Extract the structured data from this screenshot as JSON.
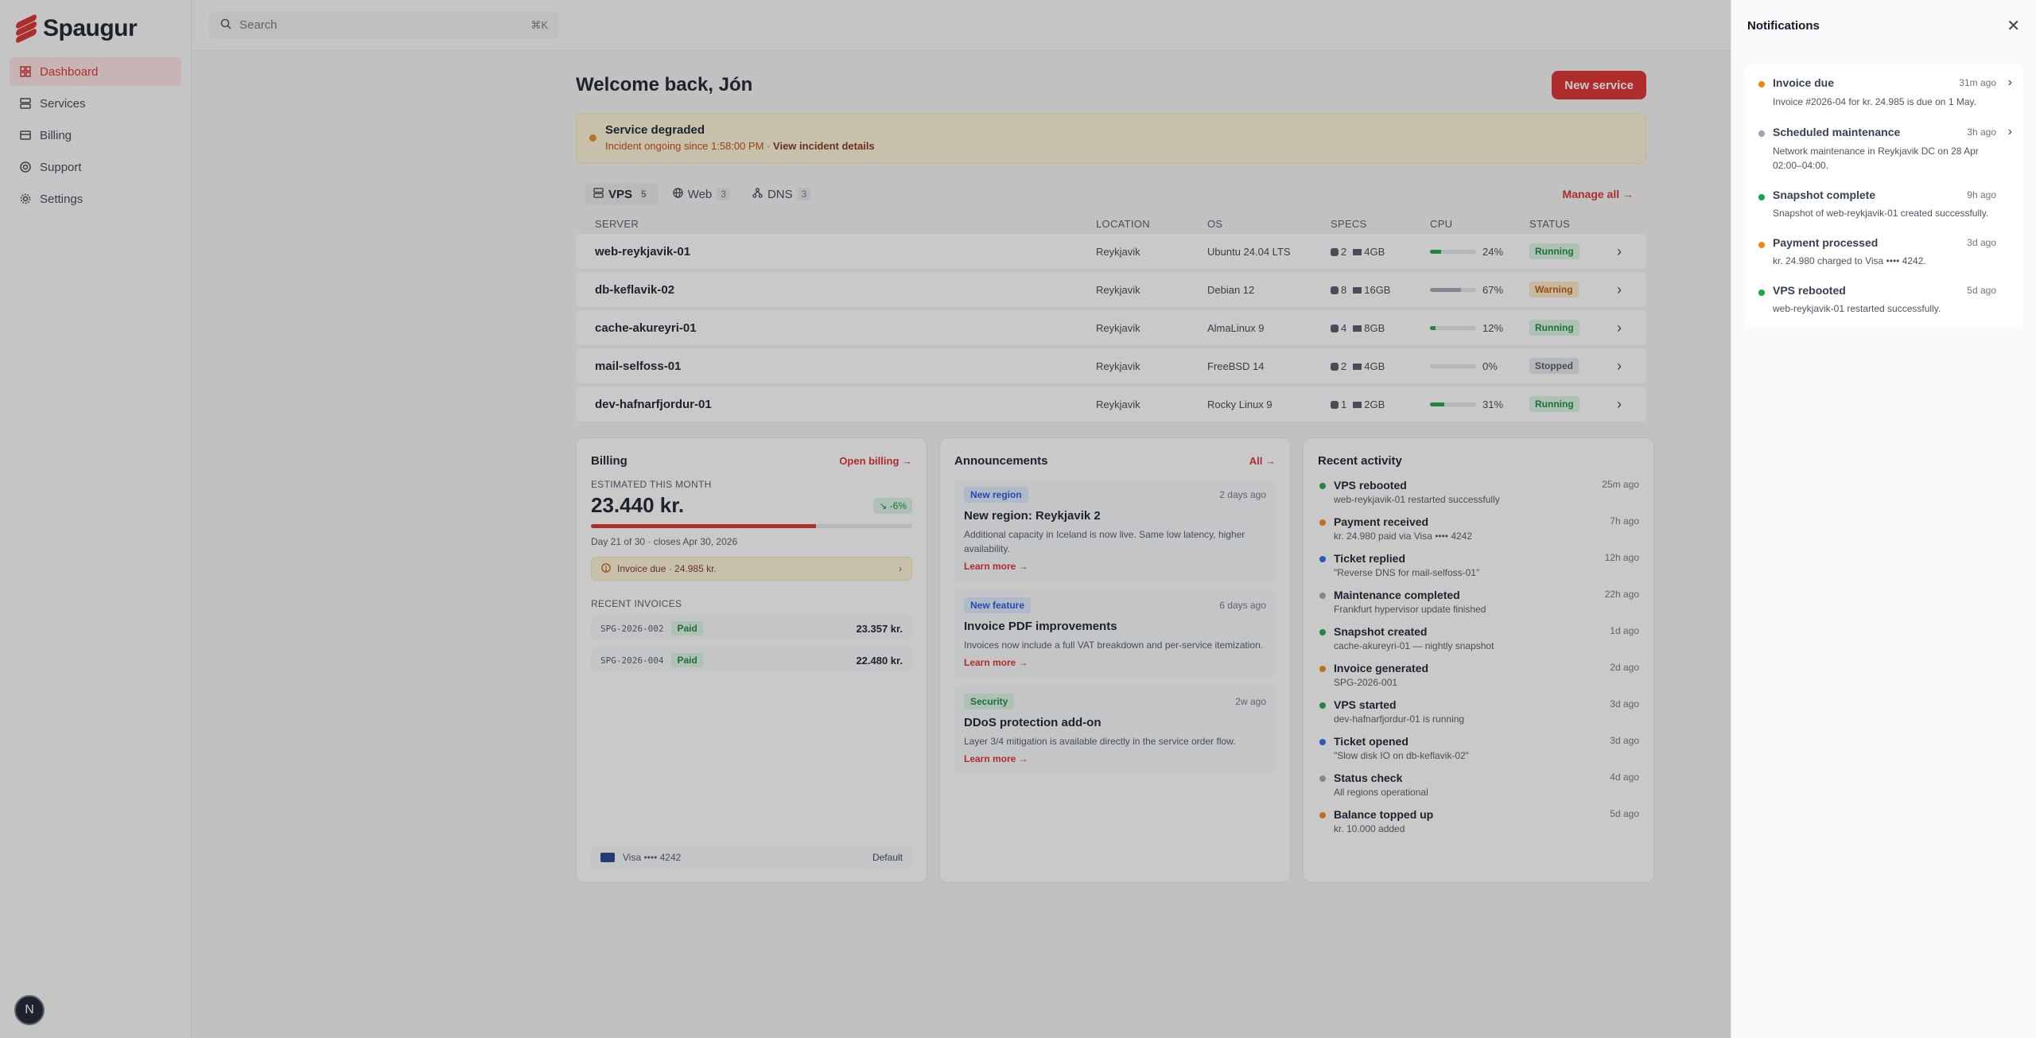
{
  "brand": {
    "name": "Spaugur",
    "accent": "#dc2626"
  },
  "sidebar": {
    "items": [
      {
        "label": "Dashboard",
        "icon": "grid-icon",
        "active": true
      },
      {
        "label": "Services",
        "icon": "server-icon"
      },
      {
        "label": "Billing",
        "icon": "card-icon"
      },
      {
        "label": "Support",
        "icon": "lifebuoy-icon"
      },
      {
        "label": "Settings",
        "icon": "gear-icon"
      }
    ],
    "avatar_initial": "N"
  },
  "search": {
    "placeholder": "Search",
    "shortcut": "⌘K"
  },
  "header": {
    "welcome": "Welcome back, Jón",
    "new_service": "New service"
  },
  "alert": {
    "title": "Service degraded",
    "sub": "Incident ongoing since 1:58:00 PM · ",
    "link": "View incident details"
  },
  "tabs": [
    {
      "label": "VPS",
      "count": "5"
    },
    {
      "label": "Web",
      "count": "3"
    },
    {
      "label": "DNS",
      "count": "3"
    }
  ],
  "manage_all": "Manage all →",
  "table": {
    "headers": [
      "SERVER",
      "LOCATION",
      "OS",
      "SPECS",
      "CPU",
      "STATUS"
    ],
    "rows": [
      {
        "server": "web-reykjavik-01",
        "location": "Reykjavik",
        "os": "Ubuntu 24.04 LTS",
        "cpu_count": "2",
        "mem": "4GB",
        "cpu": "24%",
        "cpu_value": 24,
        "status": "Running"
      },
      {
        "server": "db-keflavik-02",
        "location": "Reykjavik",
        "os": "Debian 12",
        "cpu_count": "8",
        "mem": "16GB",
        "cpu": "67%",
        "cpu_value": 67,
        "status": "Warning"
      },
      {
        "server": "cache-akureyri-01",
        "location": "Reykjavik",
        "os": "AlmaLinux 9",
        "cpu_count": "4",
        "mem": "8GB",
        "cpu": "12%",
        "cpu_value": 12,
        "status": "Running"
      },
      {
        "server": "mail-selfoss-01",
        "location": "Reykjavik",
        "os": "FreeBSD 14",
        "cpu_count": "2",
        "mem": "4GB",
        "cpu": "0%",
        "cpu_value": 0,
        "status": "Stopped"
      },
      {
        "server": "dev-hafnarfjordur-01",
        "location": "Reykjavik",
        "os": "Rocky Linux 9",
        "cpu_count": "1",
        "mem": "2GB",
        "cpu": "31%",
        "cpu_value": 31,
        "status": "Running"
      }
    ]
  },
  "billing": {
    "title": "Billing",
    "link": "Open billing →",
    "estimated_label": "ESTIMATED THIS MONTH",
    "amount": "23.440 kr.",
    "delta": "↘ -6%",
    "progress_fraction": 0.7,
    "progress_sub": "Day 21 of 30 · closes Apr 30, 2026",
    "invoice_due": "Invoice due · 24.985 kr.",
    "recent_label": "RECENT INVOICES",
    "invoices": [
      {
        "id": "SPG-2026-002",
        "status": "Paid",
        "amount": "23.357 kr."
      },
      {
        "id": "SPG-2026-004",
        "status": "Paid",
        "amount": "22.480 kr."
      }
    ],
    "payment": {
      "card": "Visa •••• 4242",
      "default": "Default"
    }
  },
  "announcements": {
    "title": "Announcements",
    "link": "All →",
    "items": [
      {
        "tag": "New region",
        "tag_color": "blue",
        "date": "2 days ago",
        "title": "New region: Reykjavik 2",
        "body": "Additional capacity in Iceland is now live. Same low latency, higher availability.",
        "link": "Learn more →"
      },
      {
        "tag": "New feature",
        "tag_color": "blue",
        "date": "6 days ago",
        "title": "Invoice PDF improvements",
        "body": "Invoices now include a full VAT breakdown and per-service itemization.",
        "link": "Learn more →"
      },
      {
        "tag": "Security",
        "tag_color": "green",
        "date": "2w ago",
        "title": "DDoS protection add-on",
        "body": "Layer 3/4 mitigation is available directly in the service order flow.",
        "link": "Learn more →"
      }
    ]
  },
  "activity": {
    "title": "Recent activity",
    "items": [
      {
        "title": "VPS rebooted",
        "sub": "web-reykjavik-01 restarted successfully",
        "time": "25m ago",
        "color": "#16a34a"
      },
      {
        "title": "Payment received",
        "sub": "kr. 24.980 paid via Visa •••• 4242",
        "time": "7h ago",
        "color": "#ea8a14"
      },
      {
        "title": "Ticket replied",
        "sub": "\"Reverse DNS for mail-selfoss-01\"",
        "time": "12h ago",
        "color": "#2563eb"
      },
      {
        "title": "Maintenance completed",
        "sub": "Frankfurt hypervisor update finished",
        "time": "22h ago",
        "color": "#9ca3af"
      },
      {
        "title": "Snapshot created",
        "sub": "cache-akureyri-01 — nightly snapshot",
        "time": "1d ago",
        "color": "#16a34a"
      },
      {
        "title": "Invoice generated",
        "sub": "SPG-2026-001",
        "time": "2d ago",
        "color": "#ea8a14"
      },
      {
        "title": "VPS started",
        "sub": "dev-hafnarfjordur-01 is running",
        "time": "3d ago",
        "color": "#16a34a"
      },
      {
        "title": "Ticket opened",
        "sub": "\"Slow disk IO on db-keflavik-02\"",
        "time": "3d ago",
        "color": "#2563eb"
      },
      {
        "title": "Status check",
        "sub": "All regions operational",
        "time": "4d ago",
        "color": "#9ca3af"
      },
      {
        "title": "Balance topped up",
        "sub": "kr. 10.000 added",
        "time": "5d ago",
        "color": "#ea8a14"
      }
    ]
  },
  "notifications": {
    "title": "Notifications",
    "items": [
      {
        "title": "Invoice due",
        "time": "31m ago",
        "sub": "Invoice #2026-04 for kr. 24.985 is due on 1 May.",
        "color": "#ea8a14",
        "chevron": true
      },
      {
        "title": "Scheduled maintenance",
        "time": "3h ago",
        "sub": "Network maintenance in Reykjavik DC on 28 Apr 02:00–04:00.",
        "color": "#9ca3af",
        "chevron": true
      },
      {
        "title": "Snapshot complete",
        "time": "9h ago",
        "sub": "Snapshot of web-reykjavik-01 created successfully.",
        "color": "#16a34a",
        "chevron": false
      },
      {
        "title": "Payment processed",
        "time": "3d ago",
        "sub": "kr. 24.980 charged to Visa •••• 4242.",
        "color": "#ea8a14",
        "chevron": false
      },
      {
        "title": "VPS rebooted",
        "time": "5d ago",
        "sub": "web-reykjavik-01 restarted successfully.",
        "color": "#16a34a",
        "chevron": false
      }
    ]
  }
}
